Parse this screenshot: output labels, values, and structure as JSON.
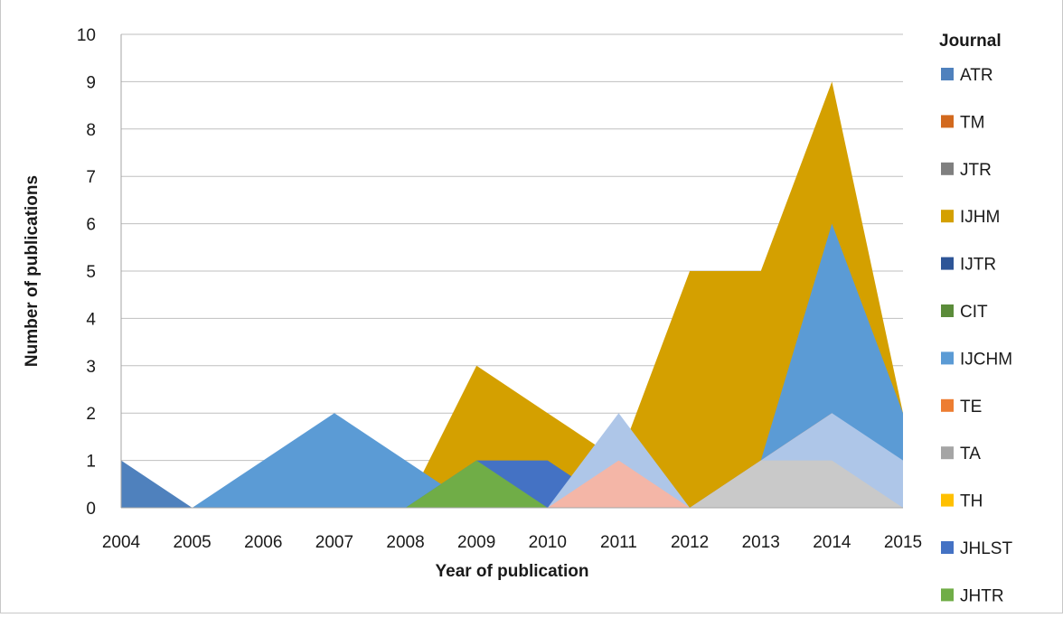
{
  "chart_data": {
    "type": "area",
    "title": "",
    "xlabel": "Year of publication",
    "ylabel": "Number of publications",
    "ylim": [
      0,
      10
    ],
    "yticks": [
      0,
      1,
      2,
      3,
      4,
      5,
      6,
      7,
      8,
      9,
      10
    ],
    "grid": "horizontal",
    "legend_placement": "right",
    "legend_title": "Journal",
    "categories": [
      "2004",
      "2005",
      "2006",
      "2007",
      "2008",
      "2009",
      "2010",
      "2011",
      "2012",
      "2013",
      "2014",
      "2015"
    ],
    "series": [
      {
        "name": "ATR",
        "color": "#4f81bd",
        "values": [
          1,
          0,
          0,
          0,
          0,
          0,
          0,
          0,
          0,
          0,
          0,
          0
        ]
      },
      {
        "name": "TM",
        "color": "#d2691e",
        "values": [
          0,
          0,
          0,
          0,
          0,
          0,
          0,
          0,
          0,
          0,
          0,
          0
        ]
      },
      {
        "name": "JTR",
        "color": "#7f7f7f",
        "values": [
          0,
          0,
          0,
          0,
          0,
          0,
          0,
          0,
          0,
          0,
          0,
          0
        ]
      },
      {
        "name": "IJHM",
        "color": "#d4a000",
        "values": [
          0,
          0,
          0,
          0,
          0,
          3,
          2,
          1,
          5,
          5,
          9,
          2
        ]
      },
      {
        "name": "IJTR",
        "color": "#2e5597",
        "values": [
          0,
          0,
          0,
          0,
          0,
          0,
          0,
          0,
          0,
          0,
          0,
          0
        ]
      },
      {
        "name": "CIT",
        "color": "#5b8c3a",
        "values": [
          0,
          0,
          0,
          0,
          0,
          0,
          0,
          0,
          0,
          0,
          0,
          0
        ]
      },
      {
        "name": "IJCHM",
        "color": "#5b9bd5",
        "values": [
          0,
          0,
          1,
          2,
          1,
          0,
          0,
          0,
          0,
          1,
          6,
          2
        ]
      },
      {
        "name": "TE",
        "color": "#ed7d31",
        "values": [
          0,
          0,
          0,
          0,
          0,
          0,
          0,
          0,
          0,
          1,
          2,
          0
        ]
      },
      {
        "name": "TA",
        "color": "#a5a5a5",
        "values": [
          0,
          0,
          0,
          0,
          0,
          0,
          0,
          0,
          0,
          0,
          0,
          0
        ]
      },
      {
        "name": "TH",
        "color": "#ffc000",
        "values": [
          0,
          0,
          0,
          0,
          0,
          0,
          0,
          0,
          0,
          0,
          0,
          0
        ]
      },
      {
        "name": "JHLST",
        "color": "#4472c4",
        "values": [
          0,
          0,
          0,
          0,
          0,
          1,
          1,
          0,
          0,
          0,
          0,
          0
        ]
      },
      {
        "name": "JHTR",
        "color": "#70ad47",
        "values": [
          0,
          0,
          0,
          0,
          0,
          1,
          0,
          0,
          0,
          0,
          0,
          0
        ]
      }
    ],
    "unlabeled_series": [
      {
        "color": "#aec6e8",
        "values": [
          0,
          0,
          0,
          0,
          0,
          0,
          0,
          2,
          0,
          1,
          2,
          1
        ]
      },
      {
        "color": "#f4b6a7",
        "values": [
          0,
          0,
          0,
          0,
          0,
          0,
          0,
          1,
          0,
          0,
          0,
          0
        ]
      },
      {
        "color": "#c9c9c9",
        "values": [
          0,
          0,
          0,
          0,
          0,
          0,
          0,
          0,
          0,
          1,
          1,
          0
        ]
      }
    ]
  }
}
